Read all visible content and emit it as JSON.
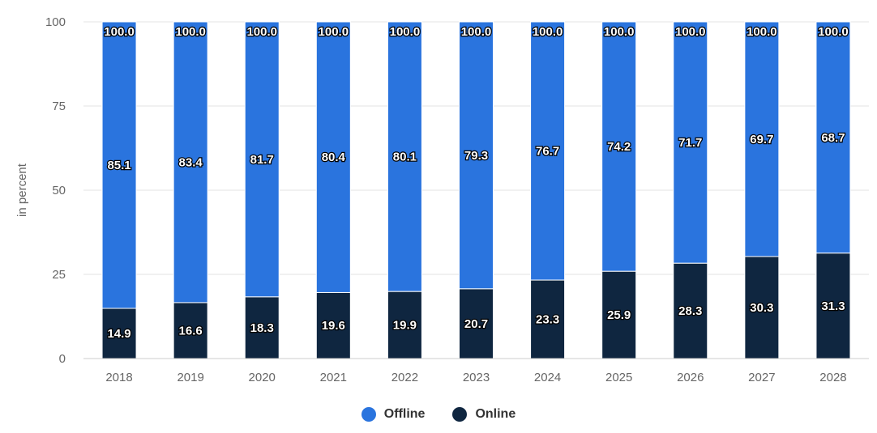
{
  "chart_data": {
    "type": "bar",
    "stacked": true,
    "categories": [
      "2018",
      "2019",
      "2020",
      "2021",
      "2022",
      "2023",
      "2024",
      "2025",
      "2026",
      "2027",
      "2028"
    ],
    "series": [
      {
        "name": "Online",
        "color": "#0f2640",
        "values": [
          14.9,
          16.6,
          18.3,
          19.6,
          19.9,
          20.7,
          23.3,
          25.9,
          28.3,
          30.3,
          31.3
        ]
      },
      {
        "name": "Offline",
        "color": "#2a74de",
        "values": [
          85.1,
          83.4,
          81.7,
          80.4,
          80.1,
          79.3,
          76.7,
          74.2,
          71.7,
          69.7,
          68.7
        ]
      }
    ],
    "totals": [
      100.0,
      100.0,
      100.0,
      100.0,
      100.0,
      100.0,
      100.0,
      100.0,
      100.0,
      100.0,
      100.0
    ],
    "ylabel": "in percent",
    "ylim": [
      0,
      100
    ],
    "yticks": [
      0,
      25,
      50,
      75,
      100
    ],
    "grid": true,
    "legend": {
      "position": "bottom-center",
      "order": [
        "Offline",
        "Online"
      ]
    }
  }
}
